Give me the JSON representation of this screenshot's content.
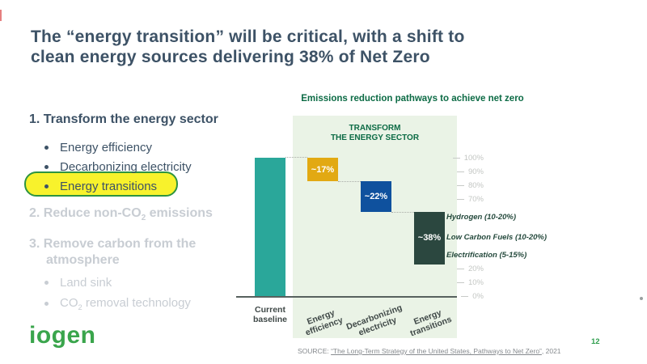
{
  "slide": {
    "title_line1": "The “energy transition” will be critical, with a shift to",
    "title_line2": "clean energy sources delivering 38% of Net Zero",
    "page_number": "12",
    "logo_text": "iogen"
  },
  "outline": {
    "section1": {
      "heading": "1. Transform the energy sector",
      "bullet1": "Energy efficiency",
      "bullet2": "Decarbonizing electricity",
      "bullet3": "Energy transitions"
    },
    "section2": {
      "heading_prefix": "2. Reduce non-CO",
      "heading_sub": "2",
      "heading_suffix": " emissions"
    },
    "section3": {
      "heading": "3. Remove carbon from the atmosphere",
      "bullet1": "Land sink",
      "bullet2_prefix": "CO",
      "bullet2_sub": "2",
      "bullet2_suffix": " removal technology"
    }
  },
  "chart_data": {
    "type": "bar",
    "subtype": "waterfall",
    "title": "Emissions reduction pathways to achieve net zero",
    "panel_header_line1": "TRANSFORM",
    "panel_header_line2": "THE ENERGY SECTOR",
    "categories": [
      "Current baseline",
      "Energy efficiency",
      "Decarbonizing electricity",
      "Energy transitions"
    ],
    "values": [
      100,
      -17,
      -22,
      -38
    ],
    "levels": [
      [
        0,
        100
      ],
      [
        83,
        100
      ],
      [
        61,
        83
      ],
      [
        23,
        61
      ]
    ],
    "bar_labels": {
      "energy_efficiency": "~17%",
      "decarbonizing_electricity": "~22%",
      "energy_transitions": "~38%"
    },
    "ylim": [
      0,
      100
    ],
    "grid": false,
    "yticks": {
      "t100": "100%",
      "t90": "90%",
      "t80": "80%",
      "t70": "70%",
      "t20": "20%",
      "t10": "10%",
      "t0": "0%"
    },
    "annotations": {
      "a1": "Hydrogen (10-20%)",
      "a2": "Low Carbon Fuels (10-20%)",
      "a3": "Electrification (5-15%)"
    },
    "x_labels": {
      "baseline_l1": "Current",
      "baseline_l2": "baseline",
      "efficiency_l1": "Energy",
      "efficiency_l2": "efficiency",
      "decarbonizing_l1": "Decarbonizing",
      "decarbonizing_l2": "electricity",
      "transitions_l1": "Energy",
      "transitions_l2": "transitions"
    },
    "colors": {
      "baseline_bar": "#2aa79a",
      "energy_efficiency_bar": "#e2a913",
      "decarbonizing_bar": "#0f519e",
      "transitions_bar": "#2b473f",
      "panel_bg": "#eaf3e6",
      "heading_green": "#0c6b45",
      "annotation_green": "#24493c",
      "axis_gray": "#c3c6c3",
      "highlight_yellow": "#f8f22c",
      "highlight_border": "#2e9440"
    }
  },
  "source": {
    "label": "SOURCE: ",
    "link_text": "“The Long-Term Strategy of the United States, Pathways to Net Zero”",
    "suffix": ", 2021"
  }
}
